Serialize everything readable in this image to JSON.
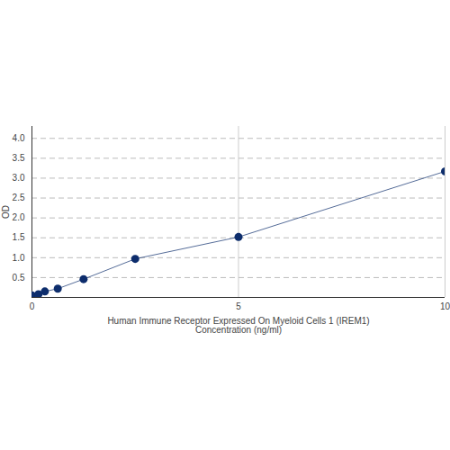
{
  "chart_data": {
    "type": "line",
    "x_label": "Human Immune Receptor Expressed On Myeloid Cells 1 (IREM1)\nConcentration (ng/ml)",
    "y_label": "OD",
    "x": [
      0,
      0.156,
      0.3125,
      0.625,
      1.25,
      2.5,
      5,
      10
    ],
    "values": [
      0.05,
      0.08,
      0.15,
      0.22,
      0.46,
      0.97,
      1.52,
      3.17
    ],
    "color": "#0d2d6c",
    "marker": "circle",
    "line_style": "solid",
    "xlim": [
      0,
      10
    ],
    "xticks": [
      0,
      5,
      10
    ],
    "ylim": [
      0,
      4.3
    ],
    "yticks": [
      0.5,
      1,
      1.5,
      2,
      2.5,
      3,
      3.5,
      4
    ],
    "grid": true
  }
}
